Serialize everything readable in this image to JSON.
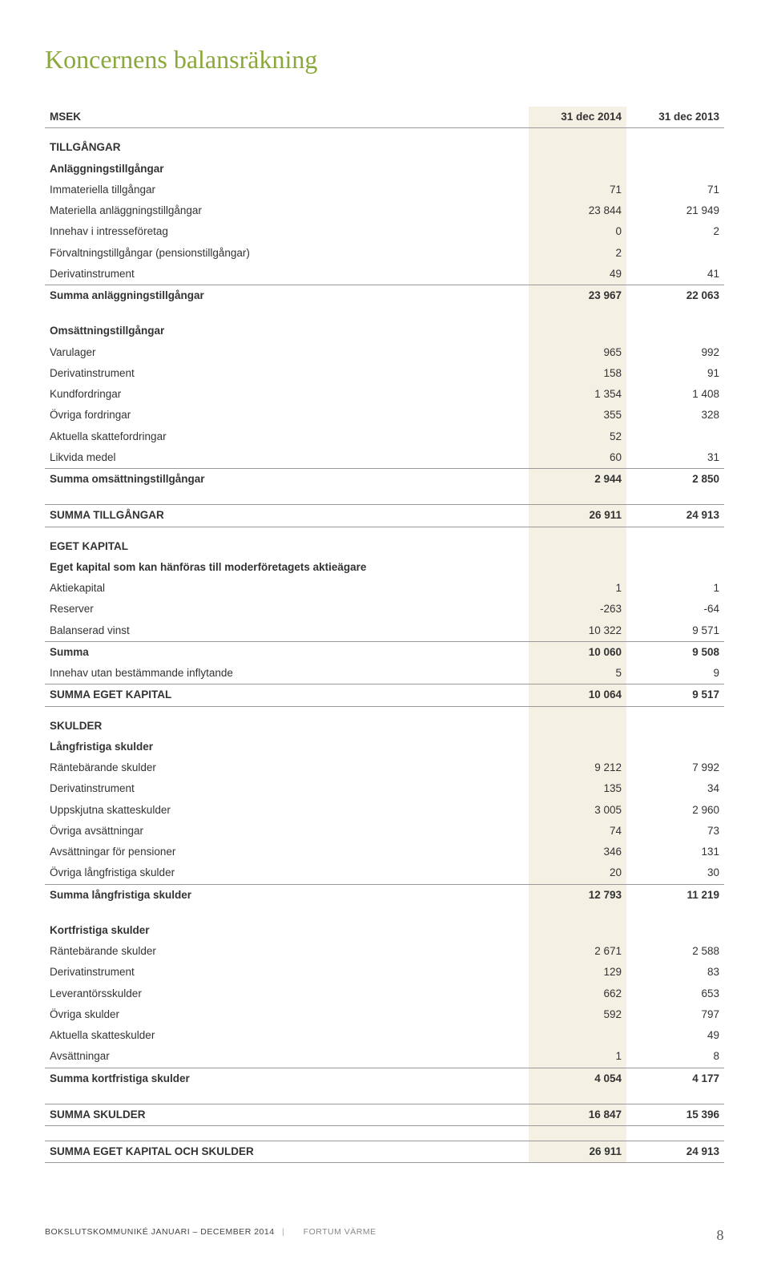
{
  "title": "Koncernens balansräkning",
  "colors": {
    "heading": "#8aa83b",
    "shade": "#f5f0e4",
    "rule": "#999999",
    "text": "#333333",
    "background": "#ffffff"
  },
  "columns": {
    "label": "MSEK",
    "c1": "31 dec 2014",
    "c2": "31 dec 2013"
  },
  "sections": [
    {
      "key": "tillgangar",
      "heading": "TILLGÅNGAR",
      "groups": [
        {
          "subheading": "Anläggningstillgångar",
          "rows": [
            {
              "label": "Immateriella tillgångar",
              "c1": "71",
              "c2": "71"
            },
            {
              "label": "Materiella anläggningstillgångar",
              "c1": "23 844",
              "c2": "21 949"
            },
            {
              "label": "Innehav i intresseföretag",
              "c1": "0",
              "c2": "2"
            },
            {
              "label": "Förvaltningstillgångar (pensionstillgångar)",
              "c1": "2",
              "c2": ""
            },
            {
              "label": "Derivatinstrument",
              "c1": "49",
              "c2": "41"
            }
          ],
          "sum": {
            "label": "Summa anläggningstillgångar",
            "c1": "23 967",
            "c2": "22 063"
          }
        },
        {
          "subheading": "Omsättningstillgångar",
          "rows": [
            {
              "label": "Varulager",
              "c1": "965",
              "c2": "992"
            },
            {
              "label": "Derivatinstrument",
              "c1": "158",
              "c2": "91"
            },
            {
              "label": "Kundfordringar",
              "c1": "1 354",
              "c2": "1 408"
            },
            {
              "label": "Övriga fordringar",
              "c1": "355",
              "c2": "328"
            },
            {
              "label": "Aktuella skattefordringar",
              "c1": "52",
              "c2": ""
            },
            {
              "label": "Likvida medel",
              "c1": "60",
              "c2": "31"
            }
          ],
          "sum": {
            "label": "Summa omsättningstillgångar",
            "c1": "2 944",
            "c2": "2 850"
          }
        }
      ],
      "total": {
        "label": "SUMMA TILLGÅNGAR",
        "c1": "26 911",
        "c2": "24 913"
      }
    },
    {
      "key": "egetkapital",
      "heading": "EGET KAPITAL",
      "groups": [
        {
          "subheading": "Eget kapital som kan hänföras till moderföretagets aktieägare",
          "rows": [
            {
              "label": "Aktiekapital",
              "c1": "1",
              "c2": "1"
            },
            {
              "label": "Reserver",
              "c1": "-263",
              "c2": "-64"
            },
            {
              "label": "Balanserad vinst",
              "c1": "10 322",
              "c2": "9 571"
            }
          ],
          "sum": {
            "label": "Summa",
            "c1": "10 060",
            "c2": "9 508"
          },
          "after_rows": [
            {
              "label": "Innehav utan bestämmande inflytande",
              "c1": "5",
              "c2": "9"
            }
          ]
        }
      ],
      "total": {
        "label": "SUMMA EGET KAPITAL",
        "c1": "10 064",
        "c2": "9 517"
      }
    },
    {
      "key": "skulder",
      "heading": "SKULDER",
      "groups": [
        {
          "subheading": "Långfristiga skulder",
          "rows": [
            {
              "label": "Räntebärande skulder",
              "c1": "9 212",
              "c2": "7 992"
            },
            {
              "label": "Derivatinstrument",
              "c1": "135",
              "c2": "34"
            },
            {
              "label": "Uppskjutna skatteskulder",
              "c1": "3 005",
              "c2": "2 960"
            },
            {
              "label": "Övriga avsättningar",
              "c1": "74",
              "c2": "73"
            },
            {
              "label": "Avsättningar för pensioner",
              "c1": "346",
              "c2": "131"
            },
            {
              "label": "Övriga långfristiga skulder",
              "c1": "20",
              "c2": "30"
            }
          ],
          "sum": {
            "label": "Summa långfristiga skulder",
            "c1": "12 793",
            "c2": "11 219"
          }
        },
        {
          "subheading": "Kortfristiga skulder",
          "rows": [
            {
              "label": "Räntebärande skulder",
              "c1": "2 671",
              "c2": "2 588"
            },
            {
              "label": "Derivatinstrument",
              "c1": "129",
              "c2": "83"
            },
            {
              "label": "Leverantörsskulder",
              "c1": "662",
              "c2": "653"
            },
            {
              "label": "Övriga skulder",
              "c1": "592",
              "c2": "797"
            },
            {
              "label": "Aktuella skatteskulder",
              "c1": "",
              "c2": "49"
            },
            {
              "label": "Avsättningar",
              "c1": "1",
              "c2": "8"
            }
          ],
          "sum": {
            "label": "Summa kortfristiga skulder",
            "c1": "4 054",
            "c2": "4 177"
          }
        }
      ],
      "total": {
        "label": "SUMMA SKULDER",
        "c1": "16 847",
        "c2": "15 396"
      }
    }
  ],
  "grand_total": {
    "label": "SUMMA EGET KAPITAL OCH SKULDER",
    "c1": "26 911",
    "c2": "24 913"
  },
  "footer": {
    "left": "BOKSLUTSKOMMUNIKÉ JANUARI – DECEMBER 2014",
    "brand": "FORTUM VÄRME",
    "page": "8"
  }
}
